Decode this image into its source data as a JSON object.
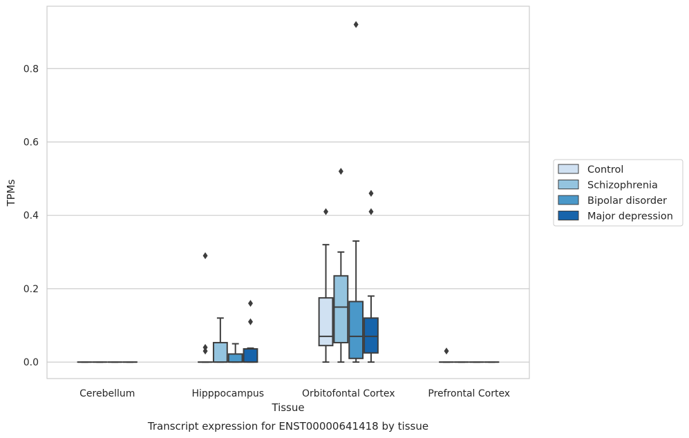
{
  "chart_data": {
    "type": "box",
    "caption": "Transcript expression for ENST00000641418 by tissue",
    "xlabel": "Tissue",
    "ylabel": "TPMs",
    "ylim": [
      -0.045,
      0.97
    ],
    "yticks": [
      "0.0",
      "0.2",
      "0.4",
      "0.6",
      "0.8"
    ],
    "ytick_values": [
      0.0,
      0.2,
      0.4,
      0.6,
      0.8
    ],
    "grid": true,
    "legend_position": "right",
    "categories": [
      "Cerebellum",
      "Hipppocampus",
      "Orbitofontal Cortex",
      "Prefrontal Cortex"
    ],
    "series": [
      {
        "name": "Control",
        "color": "#d0e1f2",
        "boxes": [
          {
            "q1": 0,
            "median": 0,
            "q3": 0,
            "whislo": 0,
            "whishi": 0,
            "fliers": []
          },
          {
            "q1": 0,
            "median": 0,
            "q3": 0,
            "whislo": 0,
            "whishi": 0,
            "fliers": [
              0.29,
              0.04,
              0.03
            ]
          },
          {
            "q1": 0.045,
            "median": 0.07,
            "q3": 0.175,
            "whislo": 0,
            "whishi": 0.32,
            "fliers": [
              0.41
            ]
          },
          {
            "q1": 0,
            "median": 0,
            "q3": 0,
            "whislo": 0,
            "whishi": 0,
            "fliers": [
              0.03
            ]
          }
        ]
      },
      {
        "name": "Schizophrenia",
        "color": "#94c4df",
        "boxes": [
          {
            "q1": 0,
            "median": 0,
            "q3": 0,
            "whislo": 0,
            "whishi": 0,
            "fliers": []
          },
          {
            "q1": 0,
            "median": 0,
            "q3": 0.053,
            "whislo": 0,
            "whishi": 0.12,
            "fliers": []
          },
          {
            "q1": 0.053,
            "median": 0.15,
            "q3": 0.235,
            "whislo": 0,
            "whishi": 0.3,
            "fliers": [
              0.52
            ]
          },
          {
            "q1": 0,
            "median": 0,
            "q3": 0,
            "whislo": 0,
            "whishi": 0,
            "fliers": []
          }
        ]
      },
      {
        "name": "Bipolar disorder",
        "color": "#4a98c9",
        "boxes": [
          {
            "q1": 0,
            "median": 0,
            "q3": 0,
            "whislo": 0,
            "whishi": 0,
            "fliers": []
          },
          {
            "q1": 0,
            "median": 0,
            "q3": 0.022,
            "whislo": 0,
            "whishi": 0.05,
            "fliers": []
          },
          {
            "q1": 0.01,
            "median": 0.07,
            "q3": 0.165,
            "whislo": 0,
            "whishi": 0.33,
            "fliers": [
              0.92
            ]
          },
          {
            "q1": 0,
            "median": 0,
            "q3": 0,
            "whislo": 0,
            "whishi": 0,
            "fliers": []
          }
        ]
      },
      {
        "name": "Major depression",
        "color": "#1764ab",
        "boxes": [
          {
            "q1": 0,
            "median": 0,
            "q3": 0,
            "whislo": 0,
            "whishi": 0,
            "fliers": []
          },
          {
            "q1": 0,
            "median": 0,
            "q3": 0.036,
            "whislo": 0,
            "whishi": 0.038,
            "fliers": [
              0.16,
              0.11
            ]
          },
          {
            "q1": 0.025,
            "median": 0.07,
            "q3": 0.12,
            "whislo": 0,
            "whishi": 0.18,
            "fliers": [
              0.46,
              0.41
            ]
          },
          {
            "q1": 0,
            "median": 0,
            "q3": 0,
            "whislo": 0,
            "whishi": 0,
            "fliers": []
          }
        ]
      }
    ]
  }
}
